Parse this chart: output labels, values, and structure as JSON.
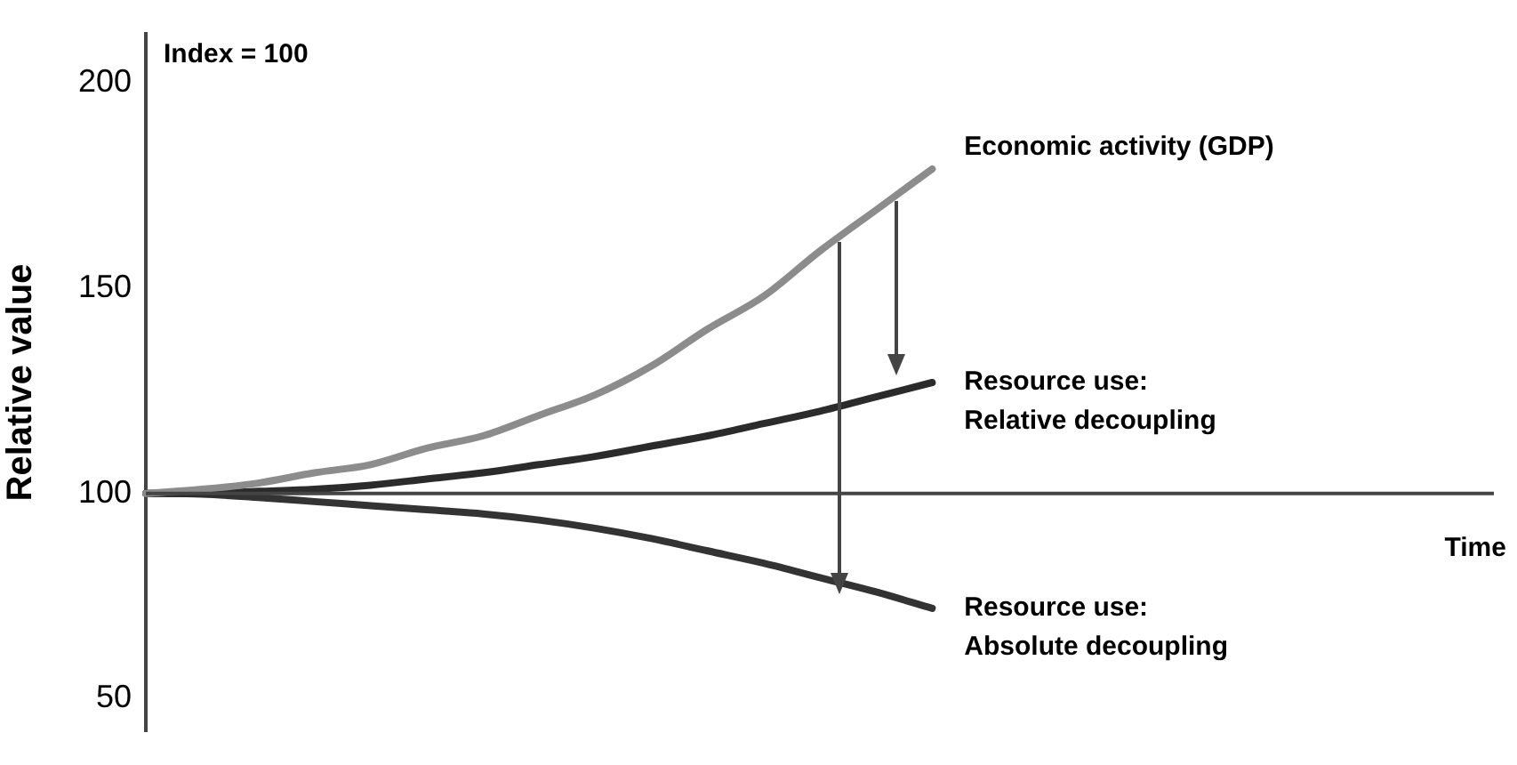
{
  "chart_data": {
    "type": "line",
    "ylabel": "Relative value",
    "xlabel": "Time",
    "annotations": [
      "Index = 100"
    ],
    "categories": [
      null,
      null,
      null,
      null,
      null,
      null,
      null,
      null,
      null,
      null,
      null,
      null,
      null,
      null,
      null,
      null,
      null,
      null,
      null,
      null,
      null,
      null,
      null,
      null,
      null
    ],
    "series": [
      {
        "name": "Economic activity (GDP)",
        "color": "#8c8c8c",
        "values": [
          100,
          101,
          102.5,
          105,
          107,
          111,
          114,
          119,
          124,
          131,
          140,
          148,
          159,
          169,
          179,
          null,
          null,
          null,
          null,
          null,
          null,
          null,
          null,
          null,
          null
        ]
      },
      {
        "name": "Resource use: Relative decoupling",
        "color": "#2b2b2b",
        "values": [
          100,
          100,
          100.5,
          101,
          102,
          103.5,
          105,
          107,
          109,
          111.5,
          114,
          117,
          120,
          123.5,
          127,
          null,
          null,
          null,
          null,
          null,
          null,
          null,
          null,
          null,
          null
        ]
      },
      {
        "name": "Resource use: Absolute decoupling",
        "color": "#333333",
        "values": [
          100,
          99.8,
          99,
          98,
          97,
          96,
          95,
          93.5,
          91.5,
          89,
          86,
          83,
          79.5,
          76,
          72,
          null,
          null,
          null,
          null,
          null,
          null,
          null,
          null,
          null,
          null
        ]
      }
    ],
    "ylim": [
      42,
      212
    ],
    "yticks": [
      50,
      100,
      150,
      200
    ],
    "ref_lines": [
      {
        "axis": "y",
        "value": 100,
        "color": "#444444"
      }
    ],
    "grid": false,
    "legend": false,
    "marker": "none",
    "line_style": "solid",
    "tick_labels": "y"
  }
}
